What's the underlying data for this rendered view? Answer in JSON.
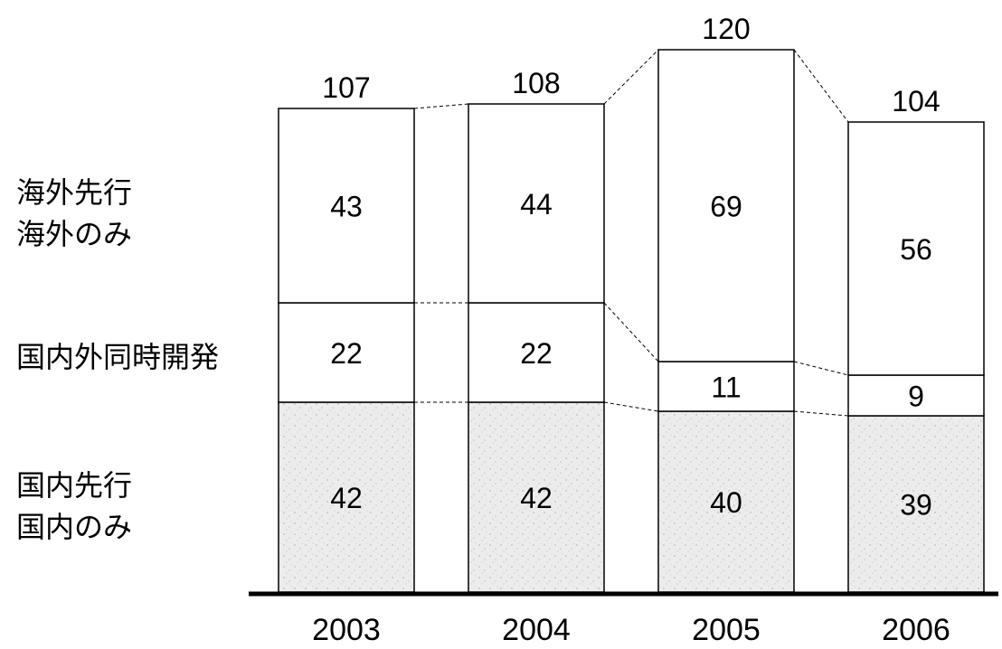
{
  "chart_data": {
    "type": "bar",
    "stacked": true,
    "categories": [
      "2003",
      "2004",
      "2005",
      "2006"
    ],
    "series": [
      {
        "values": [
          42,
          42,
          40,
          39
        ],
        "color": "#ebebeb",
        "label_lines": [
          "国内先行",
          "国内のみ"
        ]
      },
      {
        "values": [
          22,
          22,
          11,
          9
        ],
        "color": "#ffffff",
        "label_lines": [
          "国内外同時開発"
        ]
      },
      {
        "values": [
          43,
          44,
          69,
          56
        ],
        "color": "#ffffff",
        "label_lines": [
          "海外先行",
          "海外のみ"
        ]
      }
    ],
    "totals": [
      107,
      108,
      120,
      104
    ],
    "ylim": [
      0,
      120
    ],
    "grid": false,
    "connector_lines": "dashed",
    "colors": {
      "border": "#000000",
      "text": "#000000",
      "domestic_fill": "#ebebeb",
      "other_fill": "#ffffff"
    }
  }
}
